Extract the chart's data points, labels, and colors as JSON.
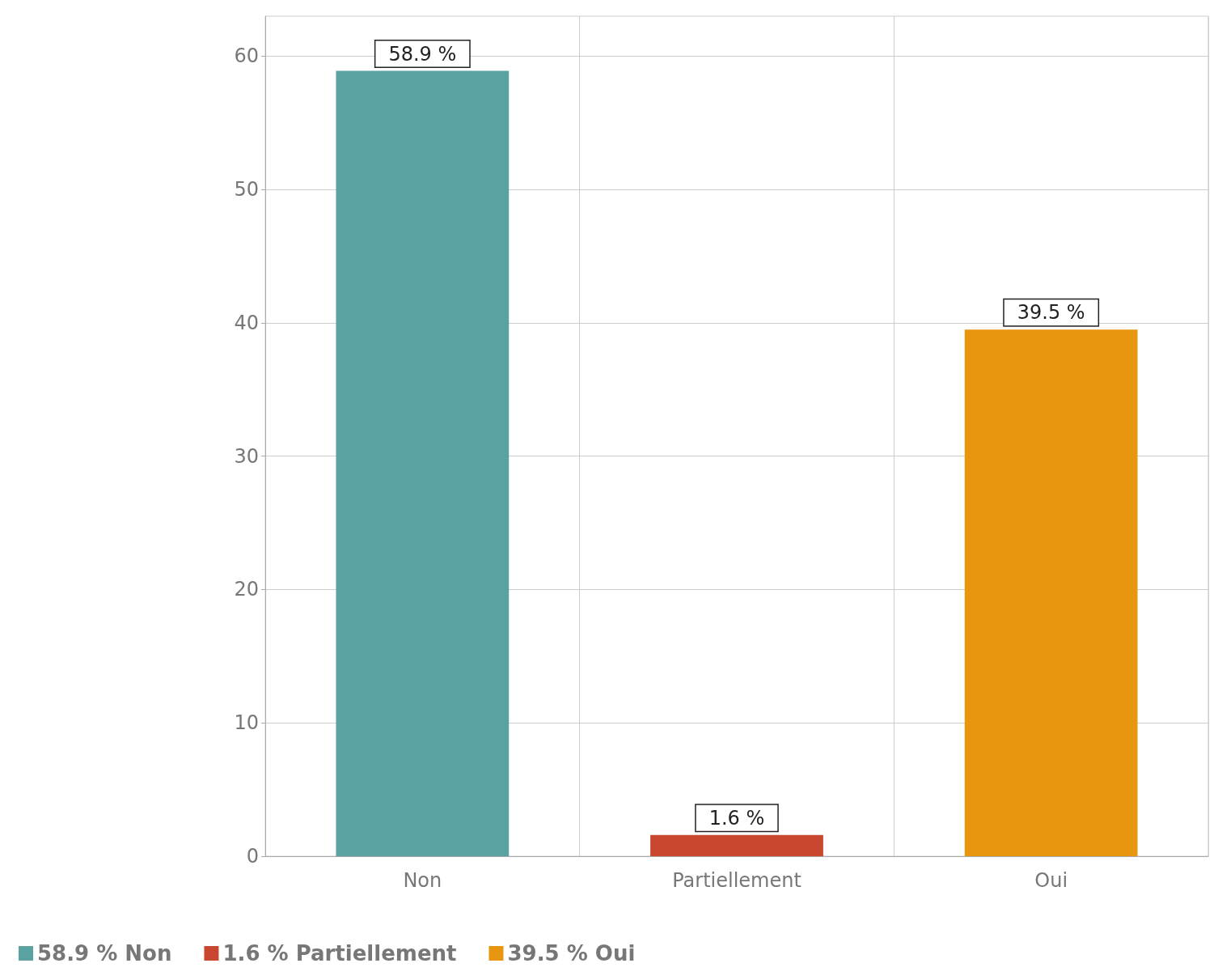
{
  "chart_data": {
    "type": "bar",
    "categories": [
      "Non",
      "Partiellement",
      "Oui"
    ],
    "stacked": true,
    "series": [
      {
        "name": "58.9 % Non",
        "color": "#5ba3a3",
        "values": [
          58.9,
          null,
          null
        ],
        "value_labels": [
          "58.9 %",
          null,
          null
        ]
      },
      {
        "name": "1.6 % Partiellement",
        "color": "#c9472f",
        "values": [
          null,
          1.6,
          null
        ],
        "value_labels": [
          null,
          "1.6 %",
          null
        ]
      },
      {
        "name": "39.5 % Oui",
        "color": "#e8960f",
        "values": [
          null,
          null,
          39.5
        ],
        "value_labels": [
          null,
          null,
          "39.5 %"
        ]
      }
    ],
    "ylim": [
      0,
      63
    ],
    "yticks": [
      0,
      10,
      20,
      30,
      40,
      50,
      60
    ],
    "grid": true,
    "legend": "bottom left"
  }
}
